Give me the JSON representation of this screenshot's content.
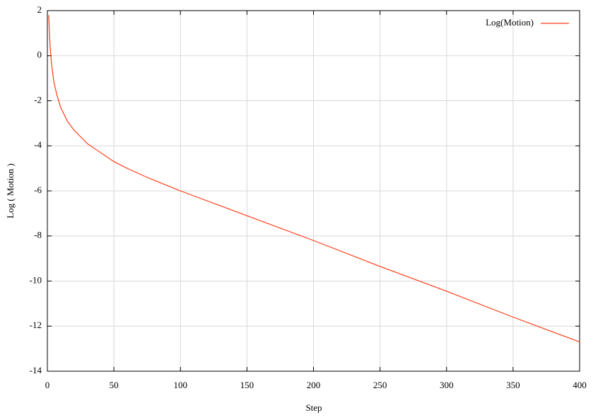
{
  "chart_data": {
    "type": "line",
    "x_label": "Step",
    "y_label": "Log ( Motion )",
    "x": [
      1,
      2,
      3,
      5,
      7,
      10,
      15,
      20,
      25,
      30,
      40,
      50,
      60,
      75,
      100,
      150,
      200,
      250,
      300,
      350,
      400
    ],
    "series": [
      {
        "name": "Log(Motion)",
        "color": "#ff3a14",
        "values": [
          1.8,
          0.5,
          -0.3,
          -1.2,
          -1.7,
          -2.3,
          -2.9,
          -3.3,
          -3.6,
          -3.9,
          -4.3,
          -4.7,
          -5.0,
          -5.4,
          -6.0,
          -7.1,
          -8.2,
          -9.35,
          -10.45,
          -11.6,
          -12.7
        ]
      }
    ],
    "xlim": [
      0,
      400
    ],
    "xticks": [
      0,
      50,
      100,
      150,
      200,
      250,
      300,
      350,
      400
    ],
    "ylim": [
      -14,
      2
    ],
    "yticks": [
      -14,
      -12,
      -10,
      -8,
      -6,
      -4,
      -2,
      0,
      2
    ],
    "grid": true,
    "legend": "top-right"
  }
}
